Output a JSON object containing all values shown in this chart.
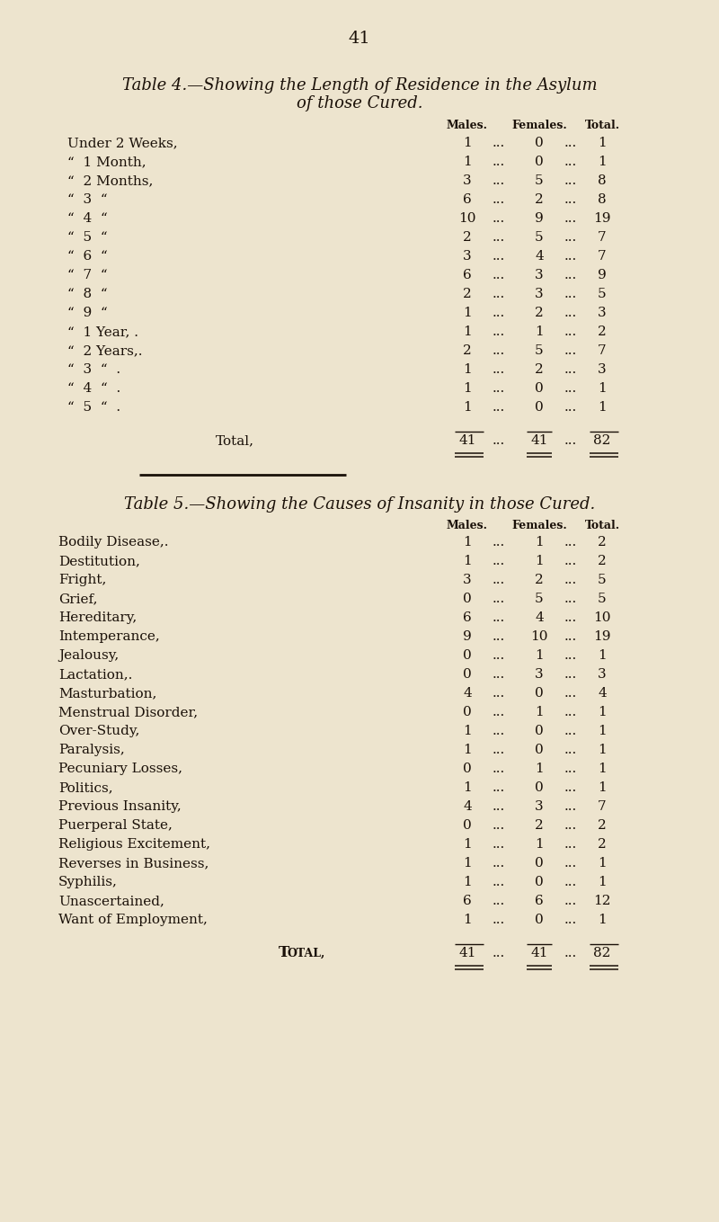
{
  "page_number": "41",
  "bg_color": "#ede4ce",
  "text_color": "#1a1008",
  "table4_title_line1": "Table 4.—Showing the Length of Residence in the Asylum",
  "table4_title_line2": "of those Cured.",
  "table4_col_headers": [
    "Males.",
    "Females.",
    "Total."
  ],
  "table4_rows": [
    [
      "Under 2 Weeks,",
      1,
      0,
      1
    ],
    [
      "“  1 Month,",
      1,
      0,
      1
    ],
    [
      "“  2 Months,",
      3,
      5,
      8
    ],
    [
      "“  3  “",
      6,
      2,
      8
    ],
    [
      "“  4  “",
      10,
      9,
      19
    ],
    [
      "“  5  “",
      2,
      5,
      7
    ],
    [
      "“  6  “",
      3,
      4,
      7
    ],
    [
      "“  7  “",
      6,
      3,
      9
    ],
    [
      "“  8  “",
      2,
      3,
      5
    ],
    [
      "“  9  “",
      1,
      2,
      3
    ],
    [
      "“  1 Year, .",
      1,
      1,
      2
    ],
    [
      "“  2 Years,.",
      2,
      5,
      7
    ],
    [
      "“  3  “  .",
      1,
      2,
      3
    ],
    [
      "“  4  “  .",
      1,
      0,
      1
    ],
    [
      "“  5  “  .",
      1,
      0,
      1
    ]
  ],
  "table4_total": [
    "Total,",
    41,
    41,
    82
  ],
  "table5_title_line1": "Table 5.—Showing the Causes of Insanity in those Cured.",
  "table5_col_headers": [
    "Males.",
    "Females.",
    "Total."
  ],
  "table5_rows": [
    [
      "Bodily Disease,.",
      1,
      1,
      2
    ],
    [
      "Destitution,",
      1,
      1,
      2
    ],
    [
      "Fright,",
      3,
      2,
      5
    ],
    [
      "Grief,",
      0,
      5,
      5
    ],
    [
      "Hereditary,",
      6,
      4,
      10
    ],
    [
      "Intemperance,",
      9,
      10,
      19
    ],
    [
      "Jealousy,",
      0,
      1,
      1
    ],
    [
      "Lactation,.",
      0,
      3,
      3
    ],
    [
      "Masturbation,",
      4,
      0,
      4
    ],
    [
      "Menstrual Disorder,",
      0,
      1,
      1
    ],
    [
      "Over-Study,",
      1,
      0,
      1
    ],
    [
      "Paralysis,",
      1,
      0,
      1
    ],
    [
      "Pecuniary Losses,",
      0,
      1,
      1
    ],
    [
      "Politics,",
      1,
      0,
      1
    ],
    [
      "Previous Insanity,",
      4,
      3,
      7
    ],
    [
      "Puerperal State,",
      0,
      2,
      2
    ],
    [
      "Religious Excitement,",
      1,
      1,
      2
    ],
    [
      "Reverses in Business,",
      1,
      0,
      1
    ],
    [
      "Syphilis,",
      1,
      0,
      1
    ],
    [
      "Unascertained,",
      6,
      6,
      12
    ],
    [
      "Want of Employment,",
      1,
      0,
      1
    ]
  ],
  "table5_total": [
    "Total,",
    41,
    41,
    82
  ]
}
